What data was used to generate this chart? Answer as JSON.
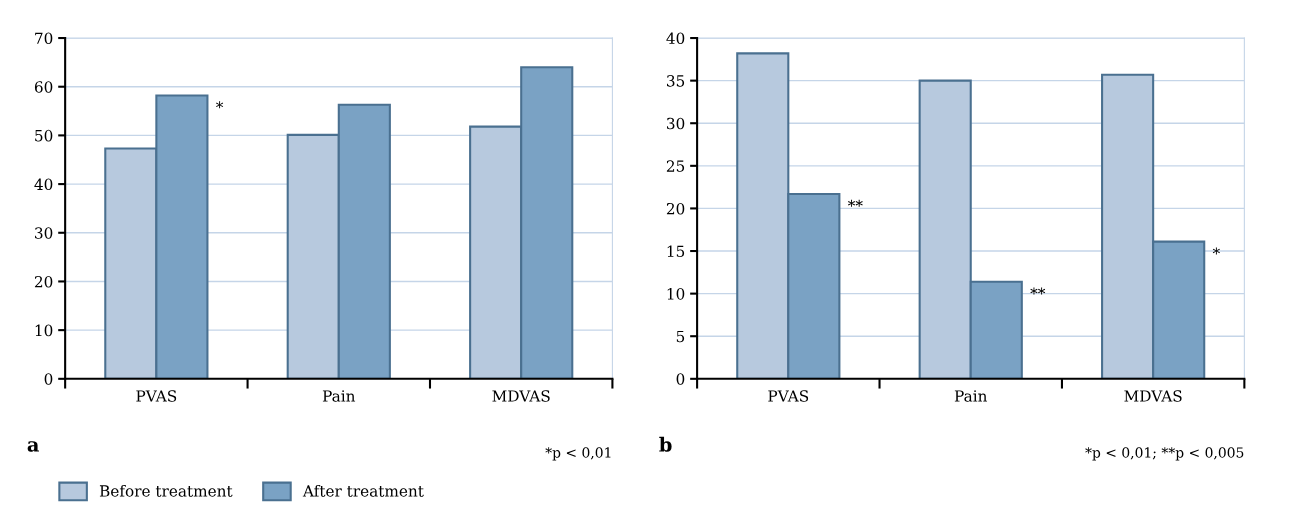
{
  "chart_data": [
    {
      "type": "bar",
      "categories": [
        "PVAS",
        "Pain",
        "MDVAS"
      ],
      "series": [
        {
          "name": "Before treatment",
          "color": "#b7c9de",
          "values": [
            47.3,
            50.1,
            51.8
          ]
        },
        {
          "name": "After treatment",
          "color": "#7aa2c4",
          "values": [
            58.2,
            56.3,
            64.0
          ]
        }
      ],
      "ylim": [
        0,
        70
      ],
      "yticks": [
        0,
        10,
        20,
        30,
        40,
        50,
        60,
        70
      ],
      "grid": "y",
      "legend": "bottom",
      "annotations": [
        "*",
        "a",
        "*p < 0,01"
      ]
    },
    {
      "type": "bar",
      "categories": [
        "PVAS",
        "Pain",
        "MDVAS"
      ],
      "series": [
        {
          "color": "#b7c9de",
          "values": [
            38.2,
            35.0,
            35.7
          ]
        },
        {
          "color": "#7aa2c4",
          "values": [
            21.7,
            11.4,
            16.1
          ]
        }
      ],
      "ylim": [
        0,
        40
      ],
      "yticks": [
        0,
        5,
        10,
        15,
        20,
        25,
        30,
        35,
        40
      ],
      "grid": "y",
      "annotations": [
        "**",
        "**",
        "*",
        "b",
        "*p < 0,01; **p < 0,005"
      ]
    }
  ]
}
